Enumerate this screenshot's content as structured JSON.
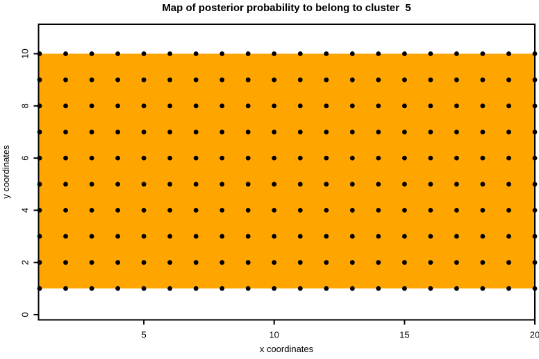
{
  "page": {
    "background_color": "#FFFFFF"
  },
  "chart_data": {
    "type": "heatmap",
    "title": "Map of posterior probability to belong to cluster  5",
    "xlabel": "x coordinates",
    "ylabel": "y coordinates",
    "x_ticks": [
      5,
      10,
      15,
      20
    ],
    "y_ticks": [
      0,
      2,
      4,
      6,
      8,
      10
    ],
    "xlim": [
      0.96,
      20
    ],
    "ylim": [
      -0.2,
      11.13
    ],
    "grid": "off",
    "legend": "none",
    "axis_color": "#000000",
    "filled_region": {
      "x0": 0.96,
      "x1": 20,
      "y0": 1,
      "y1": 10,
      "color": "#FFA500"
    },
    "grid_points": {
      "x_start": 1,
      "x_end": 20,
      "x_step": 1,
      "y_start": 1,
      "y_end": 10,
      "y_step": 1,
      "count": 200,
      "marker": "filled-circle",
      "color": "#000000"
    }
  }
}
